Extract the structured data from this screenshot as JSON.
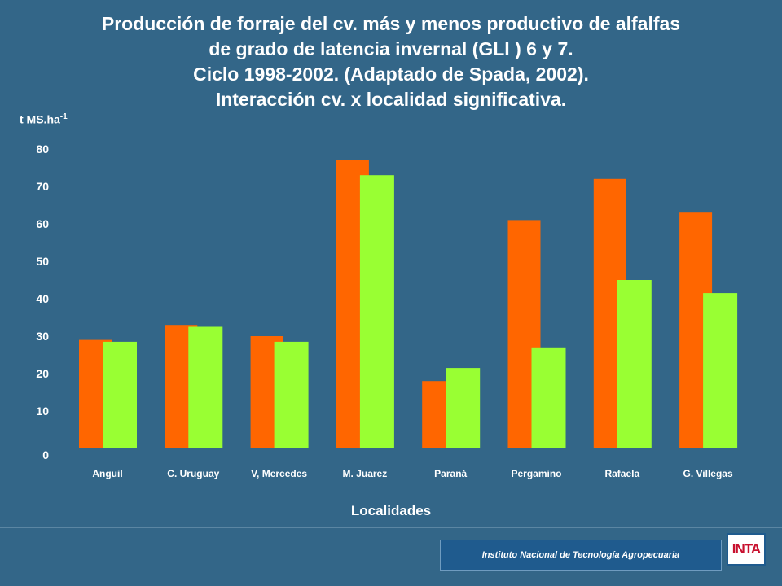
{
  "title_lines": [
    "Producción de forraje del cv. más y menos productivo de alfalfas",
    "de grado de latencia invernal (GLI ) 6 y 7.",
    "Ciclo 1998-2002. (Adaptado de Spada, 2002).",
    "Interacción cv. x localidad significativa."
  ],
  "footer": {
    "institute": "Instituto Nacional de Tecnología Agropecuaria",
    "logo_text": "INTA"
  },
  "colors": {
    "background": "#336688",
    "series_1": "#ff6600",
    "series_2": "#99ff33"
  },
  "chart_data": {
    "type": "bar",
    "ylabel_main": "t MS.ha",
    "ylabel_sup": "-1",
    "xlabel": "Localidades",
    "ylim": [
      0,
      80
    ],
    "yticks": [
      0,
      10,
      20,
      30,
      40,
      50,
      60,
      70,
      80
    ],
    "grid": false,
    "categories": [
      "Anguil",
      "C. Uruguay",
      "V, Mercedes",
      "M. Juarez",
      "Paraná",
      "Pergamino",
      "Rafaela",
      "G. Villegas"
    ],
    "series": [
      {
        "values": [
          29,
          33,
          30,
          77,
          18,
          61,
          72,
          63
        ]
      },
      {
        "values": [
          28.5,
          32.5,
          28.5,
          73,
          21.5,
          27,
          45,
          41.5
        ]
      }
    ]
  }
}
